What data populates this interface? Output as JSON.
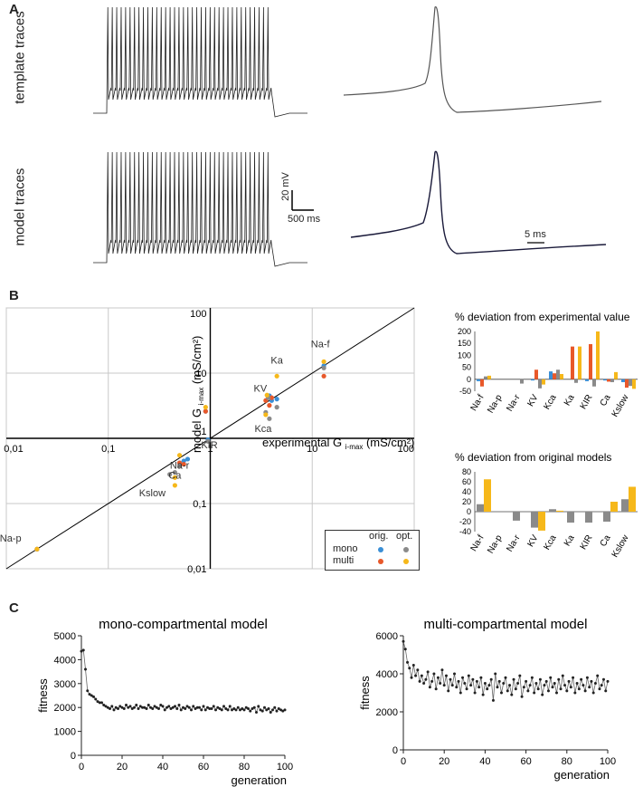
{
  "panel_a": {
    "label": "A",
    "template_label": "template traces",
    "model_label": "model traces",
    "scale_voltage": "20 mV",
    "scale_time_long": "500 ms",
    "scale_time_short": "5 ms"
  },
  "panel_b": {
    "label": "B",
    "legend": {
      "col_orig": "orig.",
      "col_opt": "opt.",
      "row_mono": "mono",
      "row_multi": "multi"
    },
    "colors": {
      "mono_orig": "#3a8fd6",
      "multi_orig": "#e8582a",
      "mono_opt": "#8a8a8a",
      "multi_opt": "#f6b81a"
    }
  },
  "panel_c": {
    "label": "C"
  },
  "chart_data": [
    {
      "type": "scatter",
      "name": "gmax-scatter",
      "title": "",
      "xlabel_main": "experimental G",
      "xlabel_sub": "i-max",
      "xlabel_unit": "(mS/cm²)",
      "ylabel_main": "model G",
      "ylabel_sub": "i-max",
      "ylabel_unit": "(mS/cm²)",
      "xscale": "log",
      "yscale": "log",
      "xlim": [
        0.01,
        100
      ],
      "ylim": [
        0.01,
        100
      ],
      "x_ticks": [
        "0,01",
        "0,1",
        "1",
        "10",
        "100"
      ],
      "y_ticks": [
        "0,01",
        "0,1",
        "1",
        "10",
        "100"
      ],
      "diagonal": "y = x",
      "channel_labels": [
        {
          "text": "Na-f",
          "x": 12,
          "y": 25
        },
        {
          "text": "Ka",
          "x": 4.5,
          "y": 14
        },
        {
          "text": "KV",
          "x": 3.1,
          "y": 5.2
        },
        {
          "text": "Kca",
          "x": 3.3,
          "y": 1.25
        },
        {
          "text": "KIR",
          "x": 0.98,
          "y": 0.7
        },
        {
          "text": "Na-r",
          "x": 0.5,
          "y": 0.34
        },
        {
          "text": "Ca",
          "x": 0.45,
          "y": 0.24
        },
        {
          "text": "Kslow",
          "x": 0.27,
          "y": 0.13
        },
        {
          "text": "Na-p",
          "x": 0.011,
          "y": 0.026
        }
      ],
      "series": [
        {
          "name": "mono orig.",
          "points": [
            [
              13,
              13
            ],
            [
              4.5,
              4
            ],
            [
              3.8,
              4.5
            ],
            [
              4,
              3.8
            ],
            [
              0.95,
              0.95
            ],
            [
              0.55,
              0.45
            ],
            [
              0.6,
              0.48
            ],
            [
              0.5,
              0.42
            ],
            [
              0.02,
              0.02
            ],
            [
              0.9,
              2.6
            ]
          ]
        },
        {
          "name": "multi orig.",
          "points": [
            [
              13,
              9
            ],
            [
              3.8,
              3.2
            ],
            [
              3.5,
              3.8
            ],
            [
              4,
              4.2
            ],
            [
              0.9,
              2.6
            ],
            [
              0.5,
              0.42
            ],
            [
              0.55,
              0.4
            ],
            [
              0.02,
              0.02
            ]
          ]
        },
        {
          "name": "mono opt.",
          "points": [
            [
              13,
              12
            ],
            [
              4.5,
              3
            ],
            [
              3.7,
              4.2
            ],
            [
              3.8,
              2
            ],
            [
              0.95,
              0.9
            ],
            [
              0.5,
              0.38
            ],
            [
              0.45,
              0.3
            ],
            [
              0.4,
              0.28
            ],
            [
              0.02,
              0.02
            ],
            [
              3.5,
              2.5
            ]
          ]
        },
        {
          "name": "multi opt.",
          "points": [
            [
              13,
              15
            ],
            [
              4.5,
              9
            ],
            [
              3.6,
              4.6
            ],
            [
              3.5,
              2.3
            ],
            [
              0.9,
              3
            ],
            [
              0.5,
              0.55
            ],
            [
              0.45,
              0.25
            ],
            [
              0.45,
              0.19
            ],
            [
              0.02,
              0.02
            ]
          ]
        }
      ],
      "legend": [
        "mono orig.",
        "mono opt.",
        "multi orig.",
        "multi opt."
      ]
    },
    {
      "type": "bar",
      "name": "deviation-experimental",
      "title": "% deviation from experimental value",
      "categories": [
        "Na-f",
        "Na-p",
        "Na-r",
        "KV",
        "Kca",
        "Ka",
        "KIR",
        "Ca",
        "Kslow"
      ],
      "ylim": [
        -50,
        200
      ],
      "y_ticks": [
        "200",
        "150",
        "100",
        "50",
        "0",
        "-50"
      ],
      "series": [
        {
          "name": "mono orig.",
          "color": "#3a8fd6",
          "values": [
            -8,
            0,
            0,
            -5,
            33,
            0,
            -8,
            -5,
            -12
          ]
        },
        {
          "name": "multi orig.",
          "color": "#e8582a",
          "values": [
            -30,
            0,
            0,
            40,
            25,
            137,
            147,
            -10,
            -35
          ]
        },
        {
          "name": "mono opt.",
          "color": "#8a8a8a",
          "values": [
            12,
            0,
            -18,
            -38,
            40,
            -15,
            -30,
            -12,
            -28
          ]
        },
        {
          "name": "multi opt.",
          "color": "#f6b81a",
          "values": [
            15,
            0,
            0,
            -22,
            22,
            137,
            200,
            30,
            -40
          ]
        }
      ]
    },
    {
      "type": "bar",
      "name": "deviation-original",
      "title": "% deviation from original models",
      "categories": [
        "Na-f",
        "Na-p",
        "Na-r",
        "KV",
        "Kca",
        "Ka",
        "KIR",
        "Ca",
        "Kslow"
      ],
      "ylim": [
        -40,
        80
      ],
      "y_ticks": [
        "80",
        "60",
        "40",
        "20",
        "0",
        "-20",
        "-40"
      ],
      "series": [
        {
          "name": "opt. vs orig. (mono)",
          "color": "#8a8a8a",
          "values": [
            15,
            0,
            -18,
            -32,
            5,
            -22,
            -22,
            -20,
            25
          ]
        },
        {
          "name": "opt. vs orig. (multi)",
          "color": "#f6b81a",
          "values": [
            65,
            0,
            0,
            -38,
            2,
            0,
            0,
            20,
            50
          ]
        }
      ]
    },
    {
      "type": "line",
      "name": "mono-fitness",
      "title": "mono-compartmental model",
      "xlabel": "generation",
      "ylabel": "fitness",
      "xlim": [
        0,
        100
      ],
      "ylim": [
        0,
        5000
      ],
      "x_ticks": [
        "0",
        "20",
        "40",
        "60",
        "80",
        "100"
      ],
      "y_ticks": [
        "5000",
        "4000",
        "3000",
        "2000",
        "1000",
        "0"
      ],
      "x": [
        0,
        1,
        2,
        3,
        4,
        5,
        6,
        7,
        8,
        9,
        10,
        11,
        12,
        13,
        14,
        15,
        16,
        17,
        18,
        19,
        20,
        21,
        22,
        23,
        24,
        25,
        26,
        27,
        28,
        29,
        30,
        31,
        32,
        33,
        34,
        35,
        36,
        37,
        38,
        39,
        40,
        41,
        42,
        43,
        44,
        45,
        46,
        47,
        48,
        49,
        50,
        51,
        52,
        53,
        54,
        55,
        56,
        57,
        58,
        59,
        60,
        61,
        62,
        63,
        64,
        65,
        66,
        67,
        68,
        69,
        70,
        71,
        72,
        73,
        74,
        75,
        76,
        77,
        78,
        79,
        80,
        81,
        82,
        83,
        84,
        85,
        86,
        87,
        88,
        89,
        90,
        91,
        92,
        93,
        94,
        95,
        96,
        97,
        98,
        99,
        100
      ],
      "values": [
        4350,
        4400,
        3600,
        2700,
        2550,
        2500,
        2450,
        2350,
        2250,
        2200,
        2200,
        2100,
        2050,
        2000,
        1950,
        2050,
        1900,
        2000,
        1950,
        2050,
        2000,
        1950,
        2100,
        2000,
        2050,
        1950,
        2000,
        2100,
        1950,
        2050,
        2000,
        2000,
        1950,
        2100,
        2000,
        1950,
        2050,
        2000,
        1950,
        2100,
        2050,
        1900,
        2000,
        2050,
        1950,
        2000,
        2050,
        1950,
        2100,
        1900,
        2000,
        1950,
        2050,
        2000,
        1900,
        2050,
        1950,
        2000,
        2000,
        1900,
        2050,
        1900,
        2000,
        1950,
        1950,
        2050,
        1900,
        2000,
        1950,
        1900,
        2050,
        1950,
        1900,
        2050,
        1900,
        1950,
        1900,
        2000,
        1900,
        1950,
        1900,
        2000,
        1950,
        1850,
        1950,
        2000,
        1800,
        2050,
        1900,
        1850,
        2000,
        1900,
        1950,
        1800,
        1900,
        2000,
        1850,
        1950,
        1900,
        1850,
        1900
      ]
    },
    {
      "type": "line",
      "name": "multi-fitness",
      "title": "multi-compartmental model",
      "xlabel": "generation",
      "ylabel": "fitness",
      "xlim": [
        0,
        100
      ],
      "ylim": [
        0,
        6000
      ],
      "x_ticks": [
        "0",
        "20",
        "40",
        "60",
        "80",
        "100"
      ],
      "y_ticks": [
        "6000",
        "4000",
        "2000",
        "0"
      ],
      "x": [
        0,
        1,
        2,
        3,
        4,
        5,
        6,
        7,
        8,
        9,
        10,
        11,
        12,
        13,
        14,
        15,
        16,
        17,
        18,
        19,
        20,
        21,
        22,
        23,
        24,
        25,
        26,
        27,
        28,
        29,
        30,
        31,
        32,
        33,
        34,
        35,
        36,
        37,
        38,
        39,
        40,
        41,
        42,
        43,
        44,
        45,
        46,
        47,
        48,
        49,
        50,
        51,
        52,
        53,
        54,
        55,
        56,
        57,
        58,
        59,
        60,
        61,
        62,
        63,
        64,
        65,
        66,
        67,
        68,
        69,
        70,
        71,
        72,
        73,
        74,
        75,
        76,
        77,
        78,
        79,
        80,
        81,
        82,
        83,
        84,
        85,
        86,
        87,
        88,
        89,
        90,
        91,
        92,
        93,
        94,
        95,
        96,
        97,
        98,
        99,
        100
      ],
      "values": [
        5700,
        5300,
        4600,
        4300,
        3800,
        4450,
        3900,
        4200,
        3600,
        3900,
        3500,
        3700,
        4100,
        3300,
        3600,
        4000,
        3200,
        3800,
        3500,
        4200,
        3400,
        3900,
        3100,
        3700,
        3400,
        4000,
        3300,
        3600,
        3000,
        3800,
        3500,
        3200,
        3900,
        3400,
        3700,
        3000,
        3600,
        3300,
        3800,
        2900,
        3500,
        3200,
        3400,
        3700,
        2600,
        4000,
        3300,
        3600,
        3000,
        3500,
        3800,
        3100,
        3400,
        2900,
        3700,
        3200,
        3500,
        3900,
        2800,
        3300,
        3600,
        3100,
        3400,
        3800,
        3000,
        3500,
        3200,
        3700,
        2900,
        3400,
        3600,
        3100,
        3800,
        3300,
        3500,
        3000,
        3700,
        3200,
        3900,
        3400,
        3100,
        3600,
        3300,
        3800,
        3000,
        3500,
        3200,
        3700,
        3400,
        3100,
        3800,
        3300,
        3600,
        3000,
        3500,
        3900,
        3200,
        3400,
        3700,
        3100,
        3600
      ]
    }
  ]
}
